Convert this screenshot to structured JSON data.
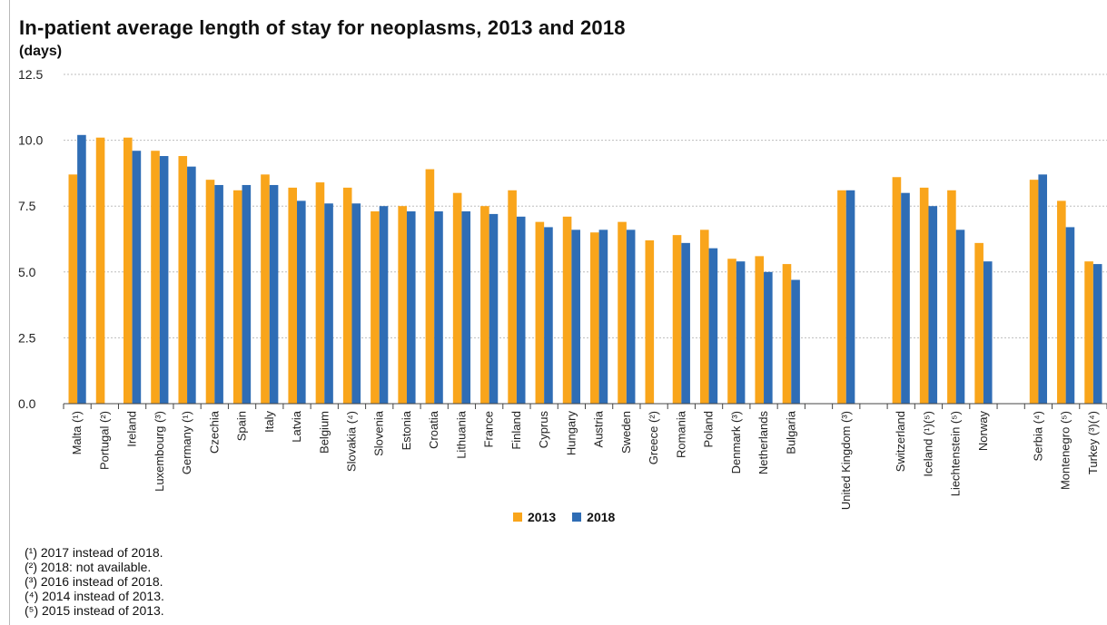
{
  "chart_data": {
    "type": "bar",
    "title": "In-patient average length of stay for neoplasms, 2013 and 2018",
    "ylabel": "(days)",
    "ylim": [
      0,
      12.5
    ],
    "yticks": [
      "0.0",
      "2.5",
      "5.0",
      "7.5",
      "10.0",
      "12.5"
    ],
    "grid": true,
    "legend": "bottom-center",
    "categories": [
      "Malta (¹)",
      "Portugal (²)",
      "Ireland",
      "Luxembourg (³)",
      "Germany (¹)",
      "Czechia",
      "Spain",
      "Italy",
      "Latvia",
      "Belgium",
      "Slovakia (⁴)",
      "Slovenia",
      "Estonia",
      "Croatia",
      "Lithuania",
      "France",
      "Finland",
      "Cyprus",
      "Hungary",
      "Austria",
      "Sweden",
      "Greece (²)",
      "Romania",
      "Poland",
      "Denmark (³)",
      "Netherlands",
      "Bulgaria",
      "",
      "United Kingdom (³)",
      "",
      "Switzerland",
      "Iceland (¹)(⁵)",
      "Liechtenstein (⁵)",
      "Norway",
      "",
      "Serbia (⁴)",
      "Montenegro (⁵)",
      "Turkey (³)(⁴)"
    ],
    "series": [
      {
        "name": "2013",
        "color": "#f9a51b",
        "values": [
          8.7,
          10.1,
          10.1,
          9.6,
          9.4,
          8.5,
          8.1,
          8.7,
          8.2,
          8.4,
          8.2,
          7.3,
          7.5,
          8.9,
          8.0,
          7.5,
          8.1,
          6.9,
          7.1,
          6.5,
          6.9,
          6.2,
          6.4,
          6.6,
          5.5,
          5.6,
          5.3,
          null,
          8.1,
          null,
          8.6,
          8.2,
          8.1,
          6.1,
          null,
          8.5,
          7.7,
          5.4
        ]
      },
      {
        "name": "2018",
        "color": "#2f6db5",
        "values": [
          10.2,
          null,
          9.6,
          9.4,
          9.0,
          8.3,
          8.3,
          8.3,
          7.7,
          7.6,
          7.6,
          7.5,
          7.3,
          7.3,
          7.3,
          7.2,
          7.1,
          6.7,
          6.6,
          6.6,
          6.6,
          null,
          6.1,
          5.9,
          5.4,
          5.0,
          4.7,
          null,
          8.1,
          null,
          8.0,
          7.5,
          6.6,
          5.4,
          null,
          8.7,
          6.7,
          5.3
        ]
      }
    ]
  },
  "footnotes": [
    "(¹) 2017 instead of 2018.",
    "(²) 2018: not available.",
    "(³) 2016 instead of 2018.",
    "(⁴) 2014 instead of 2013.",
    "(⁵) 2015 instead of 2013."
  ]
}
